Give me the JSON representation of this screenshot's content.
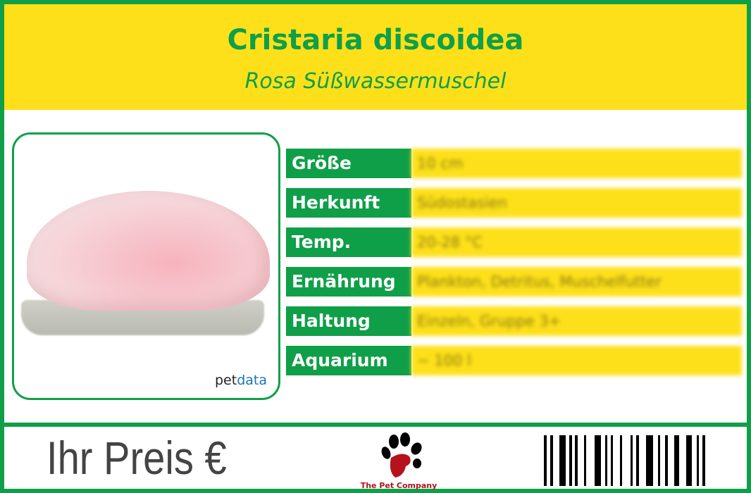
{
  "header": {
    "title": "Cristaria discoidea",
    "subtitle": "Rosa Süßwassermuschel"
  },
  "photo": {
    "brand_prefix": "pet",
    "brand_suffix": "data"
  },
  "facts": [
    {
      "label": "Größe",
      "value": "10 cm"
    },
    {
      "label": "Herkunft",
      "value": "Südostasien"
    },
    {
      "label": "Temp.",
      "value": "20-28 °C"
    },
    {
      "label": "Ernährung",
      "value": "Plankton, Detritus, Muschelfutter"
    },
    {
      "label": "Haltung",
      "value": "Einzeln, Gruppe 3+"
    },
    {
      "label": "Aquarium",
      "value": "~ 100 l"
    }
  ],
  "footer": {
    "price_label": "Ihr Preis €",
    "company": "The Pet Company"
  },
  "colors": {
    "green": "#0f9f48",
    "yellow": "#fde01a",
    "logo_red": "#b5121b"
  }
}
